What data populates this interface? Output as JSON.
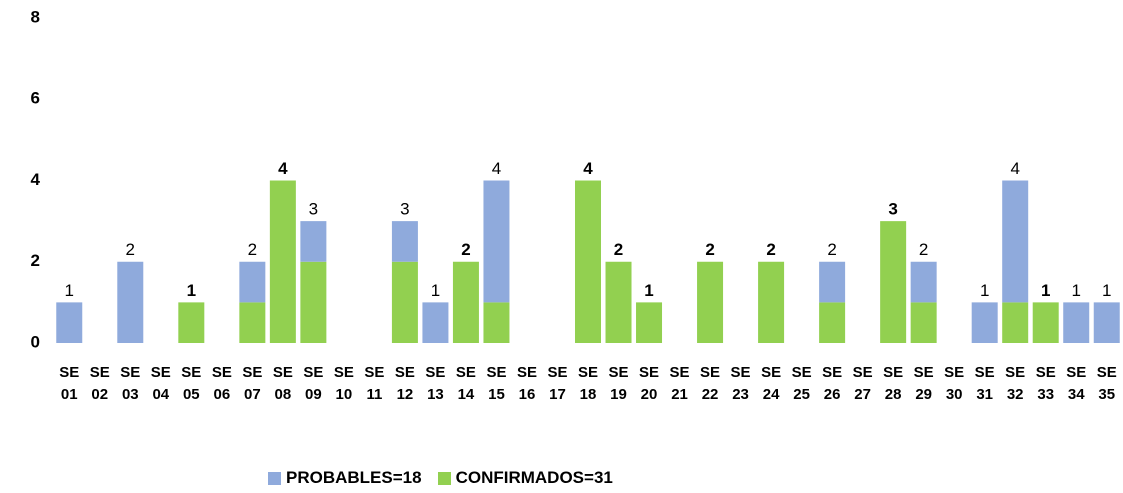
{
  "chart_data": {
    "type": "stacked_bar",
    "categories": [
      "SE 01",
      "SE 02",
      "SE 03",
      "SE 04",
      "SE 05",
      "SE 06",
      "SE 07",
      "SE 08",
      "SE 09",
      "SE 10",
      "SE 11",
      "SE 12",
      "SE 13",
      "SE 14",
      "SE 15",
      "SE 16",
      "SE 17",
      "SE 18",
      "SE 19",
      "SE 20",
      "SE 21",
      "SE 22",
      "SE 23",
      "SE 24",
      "SE 25",
      "SE 26",
      "SE 27",
      "SE 28",
      "SE 29",
      "SE 30",
      "SE 31",
      "SE 32",
      "SE 33",
      "SE 34",
      "SE 35"
    ],
    "series": [
      {
        "name": "CONFIRMADOS=31",
        "color": "#92d050",
        "values": [
          0,
          0,
          0,
          0,
          1,
          0,
          1,
          4,
          2,
          0,
          0,
          2,
          0,
          2,
          1,
          0,
          0,
          4,
          2,
          1,
          0,
          2,
          0,
          2,
          0,
          1,
          0,
          3,
          1,
          0,
          0,
          1,
          1,
          0,
          0
        ]
      },
      {
        "name": "PROBABLES=18",
        "color": "#8faadc",
        "values": [
          1,
          0,
          2,
          0,
          0,
          0,
          1,
          0,
          1,
          0,
          0,
          1,
          1,
          0,
          3,
          0,
          0,
          0,
          0,
          0,
          0,
          0,
          0,
          0,
          0,
          1,
          0,
          0,
          1,
          0,
          1,
          3,
          0,
          1,
          1
        ]
      }
    ],
    "totals": [
      1,
      null,
      2,
      null,
      1,
      null,
      2,
      4,
      3,
      null,
      null,
      3,
      1,
      2,
      4,
      null,
      null,
      4,
      2,
      1,
      null,
      2,
      null,
      2,
      null,
      2,
      null,
      3,
      2,
      null,
      1,
      4,
      1,
      1,
      1
    ],
    "legend_order": [
      1,
      0
    ],
    "ylim": [
      0,
      8
    ],
    "yticks": [
      0,
      2,
      4,
      6,
      8
    ],
    "grid": false
  }
}
